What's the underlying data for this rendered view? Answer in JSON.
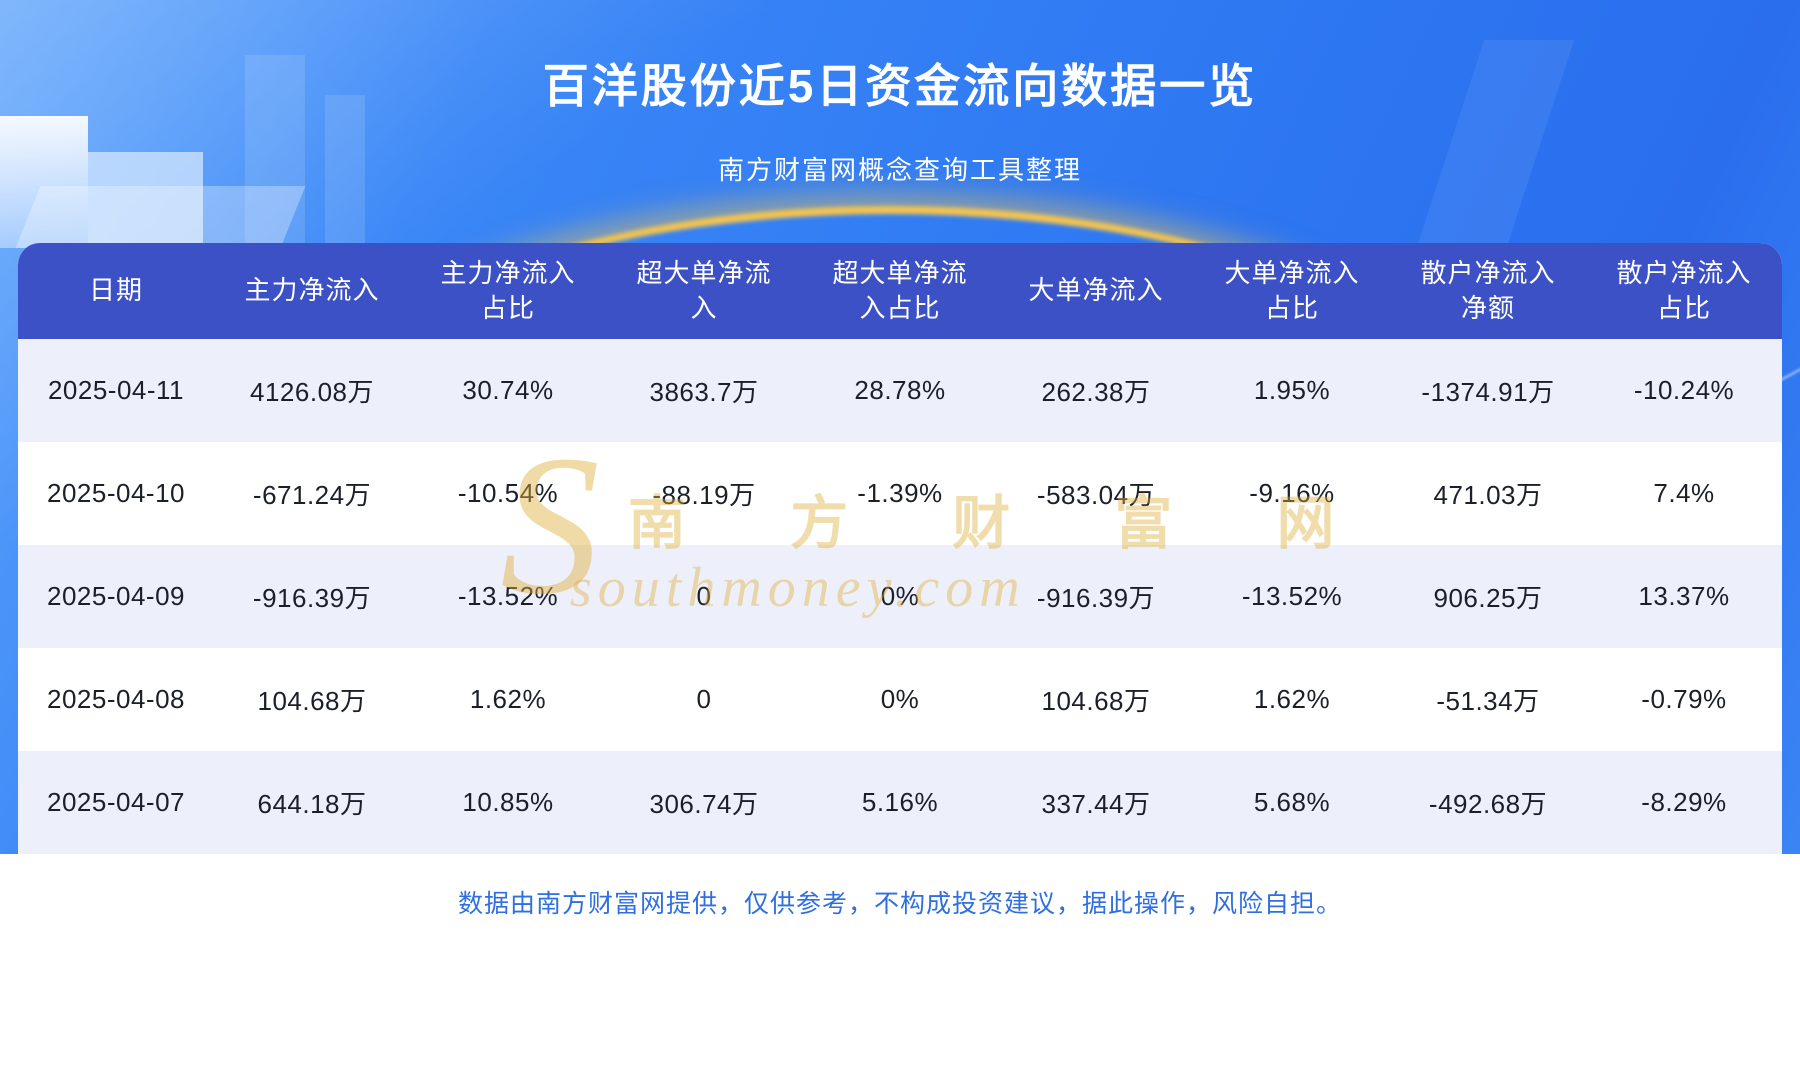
{
  "header": {
    "title": "百洋股份近5日资金流向数据一览",
    "subtitle": "南方财富网概念查询工具整理"
  },
  "watermark": {
    "logo_letter": "S",
    "text": "南 方 财 富 网",
    "url": "southmoney.com"
  },
  "footer": {
    "disclaimer": "数据由南方财富网提供，仅供参考，不构成投资建议，据此操作，风险自担。"
  },
  "colors": {
    "page_blue": "#2E78F2",
    "table_header_bg": "#3C51C5",
    "header_text": "#FFFFFF",
    "row_bg": "#FFFFFF",
    "row_alt_bg": "#EDF0FA",
    "cell_text": "#1B1F29",
    "footer_bg": "#FFFFFF",
    "footer_text": "#2F6FE0",
    "watermark_gold": "#DFAE3C",
    "arc_gold": "#F6C44C"
  },
  "chart_data": {
    "type": "table",
    "title": "百洋股份近5日资金流向数据一览",
    "columns": [
      "日期",
      "主力净流入",
      "主力净流入占比",
      "超大单净流入",
      "超大单净流入占比",
      "大单净流入",
      "大单净流入占比",
      "散户净流入净额",
      "散户净流入占比"
    ],
    "rows": [
      [
        "2025-04-11",
        "4126.08万",
        "30.74%",
        "3863.7万",
        "28.78%",
        "262.38万",
        "1.95%",
        "-1374.91万",
        "-10.24%"
      ],
      [
        "2025-04-10",
        "-671.24万",
        "-10.54%",
        "-88.19万",
        "-1.39%",
        "-583.04万",
        "-9.16%",
        "471.03万",
        "7.4%"
      ],
      [
        "2025-04-09",
        "-916.39万",
        "-13.52%",
        "0",
        "0%",
        "-916.39万",
        "-13.52%",
        "906.25万",
        "13.37%"
      ],
      [
        "2025-04-08",
        "104.68万",
        "1.62%",
        "0",
        "0%",
        "104.68万",
        "1.62%",
        "-51.34万",
        "-0.79%"
      ],
      [
        "2025-04-07",
        "644.18万",
        "10.85%",
        "306.74万",
        "5.16%",
        "337.44万",
        "5.68%",
        "-492.68万",
        "-8.29%"
      ]
    ]
  }
}
